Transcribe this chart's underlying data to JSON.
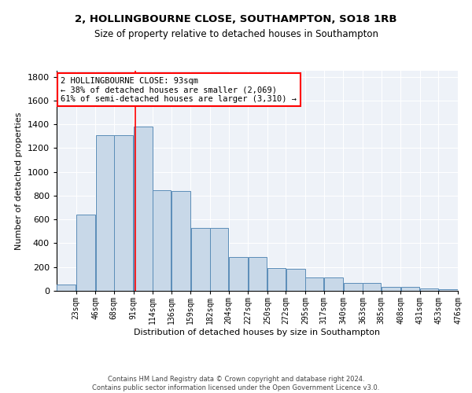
{
  "title": "2, HOLLINGBOURNE CLOSE, SOUTHAMPTON, SO18 1RB",
  "subtitle": "Size of property relative to detached houses in Southampton",
  "xlabel": "Distribution of detached houses by size in Southampton",
  "ylabel": "Number of detached properties",
  "bar_color": "#c8d8e8",
  "bar_edge_color": "#5b8db8",
  "background_color": "#eef2f8",
  "grid_color": "white",
  "red_line_x": 93,
  "annotation_text": "2 HOLLINGBOURNE CLOSE: 93sqm\n← 38% of detached houses are smaller (2,069)\n61% of semi-detached houses are larger (3,310) →",
  "footnote": "Contains HM Land Registry data © Crown copyright and database right 2024.\nContains public sector information licensed under the Open Government Licence v3.0.",
  "bin_edges": [
    0,
    23,
    46,
    68,
    91,
    114,
    136,
    159,
    182,
    204,
    227,
    250,
    272,
    295,
    317,
    340,
    363,
    385,
    408,
    431,
    453,
    476
  ],
  "bin_labels": [
    "23sqm",
    "46sqm",
    "68sqm",
    "91sqm",
    "114sqm",
    "136sqm",
    "159sqm",
    "182sqm",
    "204sqm",
    "227sqm",
    "250sqm",
    "272sqm",
    "295sqm",
    "317sqm",
    "340sqm",
    "363sqm",
    "385sqm",
    "408sqm",
    "431sqm",
    "453sqm",
    "476sqm"
  ],
  "bar_heights": [
    55,
    640,
    1305,
    1310,
    1380,
    845,
    840,
    530,
    530,
    285,
    285,
    190,
    185,
    110,
    110,
    65,
    65,
    35,
    35,
    20,
    15
  ],
  "ylim": [
    0,
    1850
  ],
  "yticks": [
    0,
    200,
    400,
    600,
    800,
    1000,
    1200,
    1400,
    1600,
    1800
  ]
}
